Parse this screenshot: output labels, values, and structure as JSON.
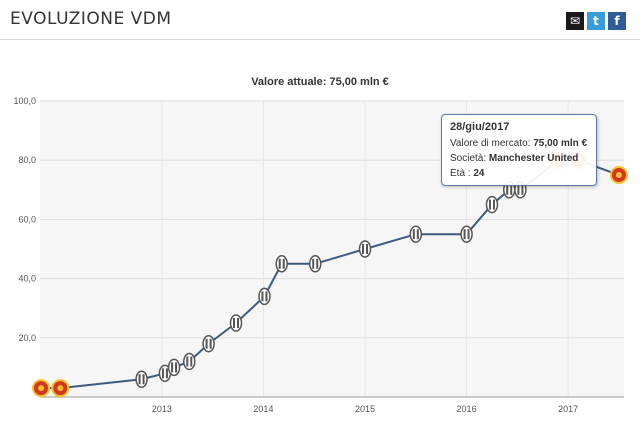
{
  "header": {
    "title": "EVOLUZIONE VDM",
    "share": [
      {
        "name": "email-share-icon",
        "glyph": "✉"
      },
      {
        "name": "twitter-share-icon",
        "glyph": "t"
      },
      {
        "name": "facebook-share-icon",
        "glyph": "f"
      }
    ]
  },
  "chart_data": {
    "type": "line",
    "title": "Valore attuale: 75,00 mln €",
    "xlabel": "",
    "ylabel": "",
    "ylim": [
      0,
      100
    ],
    "yticks": [
      "100,0",
      "80,0",
      "60,0",
      "40,0",
      "20,0"
    ],
    "ytick_values": [
      100,
      80,
      60,
      40,
      20
    ],
    "xticks": [
      "2013",
      "2014",
      "2015",
      "2016",
      "2017"
    ],
    "xtick_values": [
      2013.0,
      2014.0,
      2015.0,
      2016.0,
      2017.0
    ],
    "xlim": [
      2011.8,
      2017.55
    ],
    "grid": true,
    "line_color": "#3d5a80",
    "series": [
      {
        "values": [
          {
            "x": 2011.81,
            "y": 3,
            "club": "Manchester United"
          },
          {
            "x": 2012.0,
            "y": 3,
            "club": "Manchester United"
          },
          {
            "x": 2012.8,
            "y": 6,
            "club": "Juventus"
          },
          {
            "x": 2013.03,
            "y": 8,
            "club": "Juventus"
          },
          {
            "x": 2013.12,
            "y": 10,
            "club": "Juventus"
          },
          {
            "x": 2013.27,
            "y": 12,
            "club": "Juventus"
          },
          {
            "x": 2013.46,
            "y": 18,
            "club": "Juventus"
          },
          {
            "x": 2013.73,
            "y": 25,
            "club": "Juventus"
          },
          {
            "x": 2014.01,
            "y": 34,
            "club": "Juventus"
          },
          {
            "x": 2014.18,
            "y": 45,
            "club": "Juventus"
          },
          {
            "x": 2014.51,
            "y": 45,
            "club": "Juventus"
          },
          {
            "x": 2015.0,
            "y": 50,
            "club": "Juventus"
          },
          {
            "x": 2015.5,
            "y": 55,
            "club": "Juventus"
          },
          {
            "x": 2016.0,
            "y": 55,
            "club": "Juventus"
          },
          {
            "x": 2016.25,
            "y": 65,
            "club": "Juventus"
          },
          {
            "x": 2016.42,
            "y": 70,
            "club": "Juventus"
          },
          {
            "x": 2016.53,
            "y": 70,
            "club": "Juventus"
          },
          {
            "x": 2016.9,
            "y": 80,
            "club": "Manchester United"
          },
          {
            "x": 2017.1,
            "y": 80,
            "club": "Manchester United"
          },
          {
            "x": 2017.5,
            "y": 75,
            "club": "Manchester United"
          }
        ]
      }
    ],
    "tooltip": {
      "date": "28/giu/2017",
      "value_label": "Valore di mercato",
      "value": "75,00 mln €",
      "club_label": "Società",
      "club": "Manchester United",
      "age_label": "Età",
      "age": "24"
    },
    "colors": {
      "manutd_crest": "#d4351c",
      "juve_crest": "#555555",
      "plot_bg": "#f6f6f6",
      "grid": "#dddddd"
    }
  }
}
